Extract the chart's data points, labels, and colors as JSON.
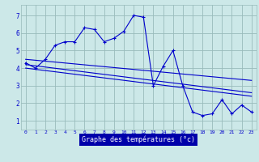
{
  "title": "Graphe des températures (°c)",
  "bg_color": "#cce8e8",
  "plot_bg_color": "#cce8e8",
  "xlabel_bg": "#0000aa",
  "xlabel_fg": "#ffffff",
  "line_color": "#0000cc",
  "grid_color": "#99bbbb",
  "x_ticks": [
    0,
    1,
    2,
    3,
    4,
    5,
    6,
    7,
    8,
    9,
    10,
    11,
    12,
    13,
    14,
    15,
    16,
    17,
    18,
    19,
    20,
    21,
    22,
    23
  ],
  "y_ticks": [
    1,
    2,
    3,
    4,
    5,
    6,
    7
  ],
  "ylim": [
    0.5,
    7.6
  ],
  "xlim": [
    -0.5,
    23.5
  ],
  "series1_x": [
    0,
    1,
    2,
    3,
    4,
    5,
    6,
    7,
    8,
    9,
    10,
    11,
    12,
    13,
    14,
    15,
    16,
    17,
    18,
    19,
    20,
    21,
    22,
    23
  ],
  "series1_y": [
    4.3,
    4.0,
    4.5,
    5.3,
    5.5,
    5.5,
    6.3,
    6.2,
    5.5,
    5.7,
    6.1,
    7.0,
    6.9,
    3.0,
    4.1,
    5.0,
    3.0,
    1.5,
    1.3,
    1.4,
    2.2,
    1.4,
    1.9,
    1.5
  ],
  "trend1_x": [
    0,
    23
  ],
  "trend1_y": [
    4.5,
    3.3
  ],
  "trend2_x": [
    0,
    23
  ],
  "trend2_y": [
    4.2,
    2.6
  ],
  "trend3_x": [
    0,
    23
  ],
  "trend3_y": [
    4.0,
    2.4
  ]
}
